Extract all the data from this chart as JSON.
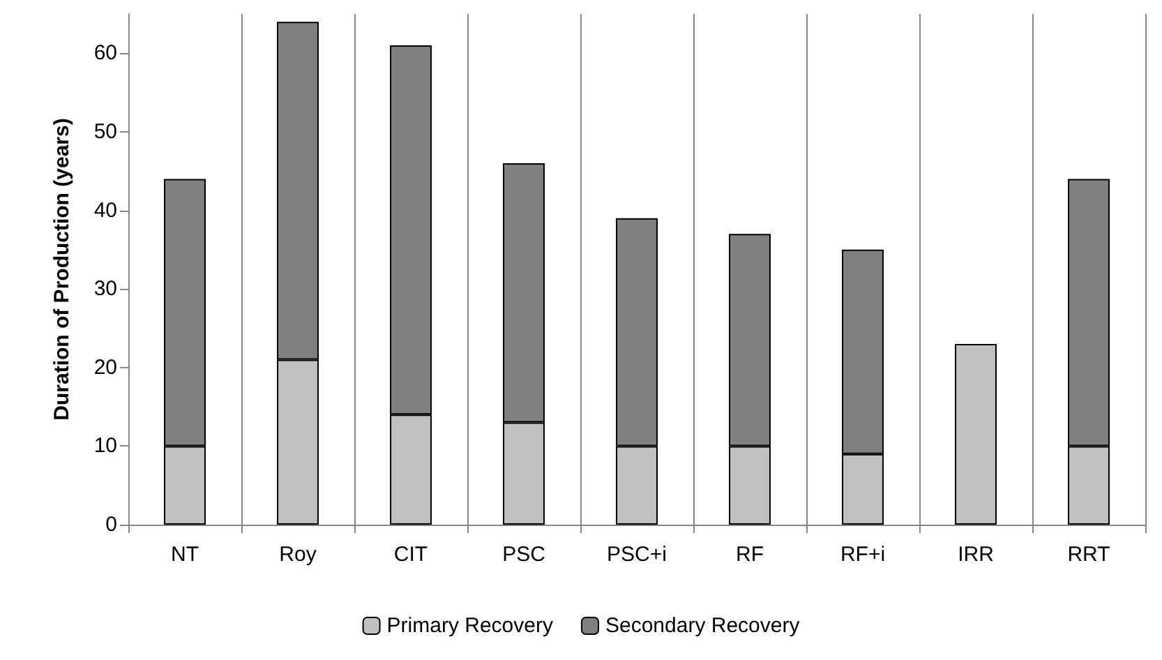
{
  "chart_data": {
    "type": "bar",
    "stacked": true,
    "ylabel": "Duration of Production (years)",
    "categories": [
      "NT",
      "Roy",
      "CIT",
      "PSC",
      "PSC+i",
      "RF",
      "RF+i",
      "IRR",
      "RRT"
    ],
    "series": [
      {
        "name": "Primary Recovery",
        "color": "#c0c0c0",
        "values": [
          10,
          21,
          14,
          13,
          10,
          10,
          9,
          23,
          10
        ]
      },
      {
        "name": "Secondary Recovery",
        "color": "#808080",
        "values": [
          34,
          43,
          47,
          33,
          29,
          27,
          26,
          null,
          34
        ]
      }
    ],
    "ylim": [
      0,
      65
    ],
    "yticks": [
      0,
      10,
      20,
      30,
      40,
      50,
      60
    ],
    "grid": "x",
    "legend": "bottom"
  }
}
